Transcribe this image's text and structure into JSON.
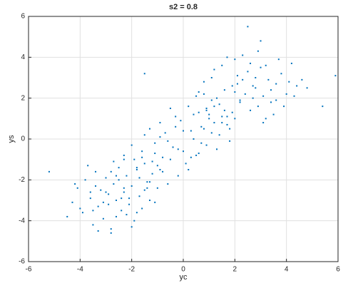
{
  "chart_data": {
    "type": "scatter",
    "title": "s2 = 0.8",
    "x_label": "yc",
    "y_label": "ys",
    "color": "#0072bd",
    "grid": true,
    "xlim": [
      -6,
      6
    ],
    "ylim": [
      -6,
      6
    ],
    "xticks": [
      -6,
      -4,
      -2,
      0,
      2,
      4,
      6
    ],
    "yticks": [
      -6,
      -4,
      -2,
      0,
      2,
      4,
      6
    ],
    "x": [
      -4.3,
      -4.1,
      -3.9,
      -3.8,
      -3.6,
      -3.5,
      -3.4,
      -3.3,
      -3.2,
      -3.1,
      -3.0,
      -2.9,
      -2.8,
      -2.7,
      -2.6,
      -2.5,
      -2.4,
      -2.3,
      -2.2,
      -2.1,
      -2.0,
      -1.9,
      -1.8,
      -1.7,
      -1.6,
      -1.5,
      -1.4,
      -1.3,
      -1.2,
      -1.0,
      -4.5,
      -4.0,
      -3.7,
      -3.4,
      -3.1,
      -2.8,
      -2.6,
      -2.3,
      -2.1,
      -1.8,
      -1.5,
      -3.3,
      -2.9,
      -2.5,
      -2.0,
      -3.6,
      -2.7,
      -2.2,
      -1.9,
      -4.2,
      -5.2,
      -3.0,
      -2.4,
      -1.6,
      -1.1,
      -3.5,
      -2.8,
      -2.3,
      -1.7,
      -0.9,
      -2.0,
      -1.8,
      -1.5,
      -1.3,
      -1.1,
      -0.9,
      -0.8,
      -0.6,
      -0.5,
      -0.3,
      -0.2,
      0.0,
      0.1,
      0.2,
      0.4,
      0.5,
      0.6,
      0.8,
      0.9,
      1.1,
      1.2,
      1.4,
      1.6,
      1.8,
      -1.2,
      -0.7,
      -0.4,
      0.3,
      0.7,
      1.0,
      -1.6,
      -1.0,
      -0.1,
      0.5,
      1.3,
      -0.8,
      0.2,
      0.9,
      -1.4,
      -0.3,
      0.6,
      1.5,
      -2.3,
      -0.6,
      0.4,
      1.1,
      -0.9,
      0.0,
      0.8,
      1.7,
      -1.7,
      -0.5,
      0.3,
      1.2,
      -1.1,
      -0.2,
      0.7,
      2.0,
      -2.6,
      -1.3,
      0.6,
      0.9,
      1.1,
      1.3,
      1.5,
      1.7,
      1.9,
      2.0,
      2.2,
      2.3,
      2.5,
      2.6,
      2.8,
      2.9,
      3.1,
      3.2,
      3.4,
      3.6,
      3.8,
      4.0,
      4.2,
      4.4,
      1.0,
      1.6,
      2.1,
      2.7,
      3.3,
      3.9,
      4.6,
      5.4,
      1.2,
      1.8,
      2.4,
      3.0,
      3.5,
      4.1,
      0.8,
      1.4,
      2.3,
      2.9,
      3.7,
      4.3,
      1.5,
      2.1,
      2.6,
      3.2,
      2.0,
      2.8,
      3.4,
      1.9,
      2.5,
      3.0,
      3.6,
      4.8,
      5.9,
      2.2,
      2.7,
      3.1,
      1.7,
      -1.5
    ],
    "values": [
      -3.1,
      -2.4,
      -3.6,
      -2.0,
      -2.9,
      -4.2,
      -1.6,
      -3.3,
      -2.5,
      -3.9,
      -1.9,
      -2.7,
      -4.4,
      -2.2,
      -3.0,
      -1.4,
      -3.5,
      -2.6,
      -1.8,
      -3.2,
      -2.3,
      -4.0,
      -1.5,
      -2.8,
      -3.4,
      -1.2,
      -2.1,
      -3.0,
      -1.7,
      -2.4,
      -3.8,
      -3.4,
      -1.3,
      -2.3,
      -3.1,
      -1.6,
      -3.8,
      -0.8,
      -2.9,
      -3.6,
      -2.5,
      -4.5,
      -3.2,
      -2.0,
      -4.3,
      -2.6,
      -1.1,
      -3.7,
      -1.0,
      -2.2,
      -1.6,
      -2.6,
      -2.9,
      -0.9,
      -3.1,
      -3.5,
      -4.6,
      -2.4,
      -1.9,
      -1.5,
      -0.3,
      -1.4,
      0.2,
      -2.1,
      -0.7,
      0.8,
      -1.6,
      -0.1,
      -1.0,
      1.1,
      -0.5,
      0.4,
      -1.2,
      1.6,
      0.0,
      -0.8,
      1.3,
      0.5,
      -0.3,
      1.9,
      0.8,
      0.2,
      1.4,
      -0.1,
      -1.1,
      0.3,
      -0.4,
      -0.9,
      -0.2,
      1.0,
      -0.6,
      -1.3,
      0.9,
      2.1,
      -0.5,
      -0.9,
      -1.5,
      1.4,
      -2.4,
      0.6,
      -0.7,
      1.1,
      -1.0,
      -2.2,
      1.2,
      0.3,
      0.1,
      -0.6,
      2.2,
      0.7,
      -1.9,
      1.5,
      0.4,
      1.6,
      -0.2,
      -1.8,
      0.6,
      1.0,
      -1.8,
      0.5,
      2.3,
      1.5,
      3.0,
      2.0,
      3.6,
      1.1,
      2.6,
      3.9,
      1.8,
      2.9,
      3.3,
      1.4,
      2.5,
      4.3,
      2.1,
      3.6,
      1.8,
      2.7,
      3.2,
      2.2,
      3.7,
      2.6,
      1.2,
      2.4,
      3.1,
      2.0,
      2.9,
      1.6,
      2.9,
      1.6,
      3.4,
      0.5,
      2.2,
      3.5,
      1.2,
      2.8,
      2.8,
      1.7,
      4.1,
      1.6,
      3.9,
      2.1,
      0.8,
      2.7,
      3.7,
      1.0,
      2.3,
      3.0,
      2.4,
      1.3,
      5.5,
      4.8,
      1.9,
      2.5,
      3.1,
      1.9,
      2.6,
      0.8,
      4.0,
      3.2
    ]
  }
}
